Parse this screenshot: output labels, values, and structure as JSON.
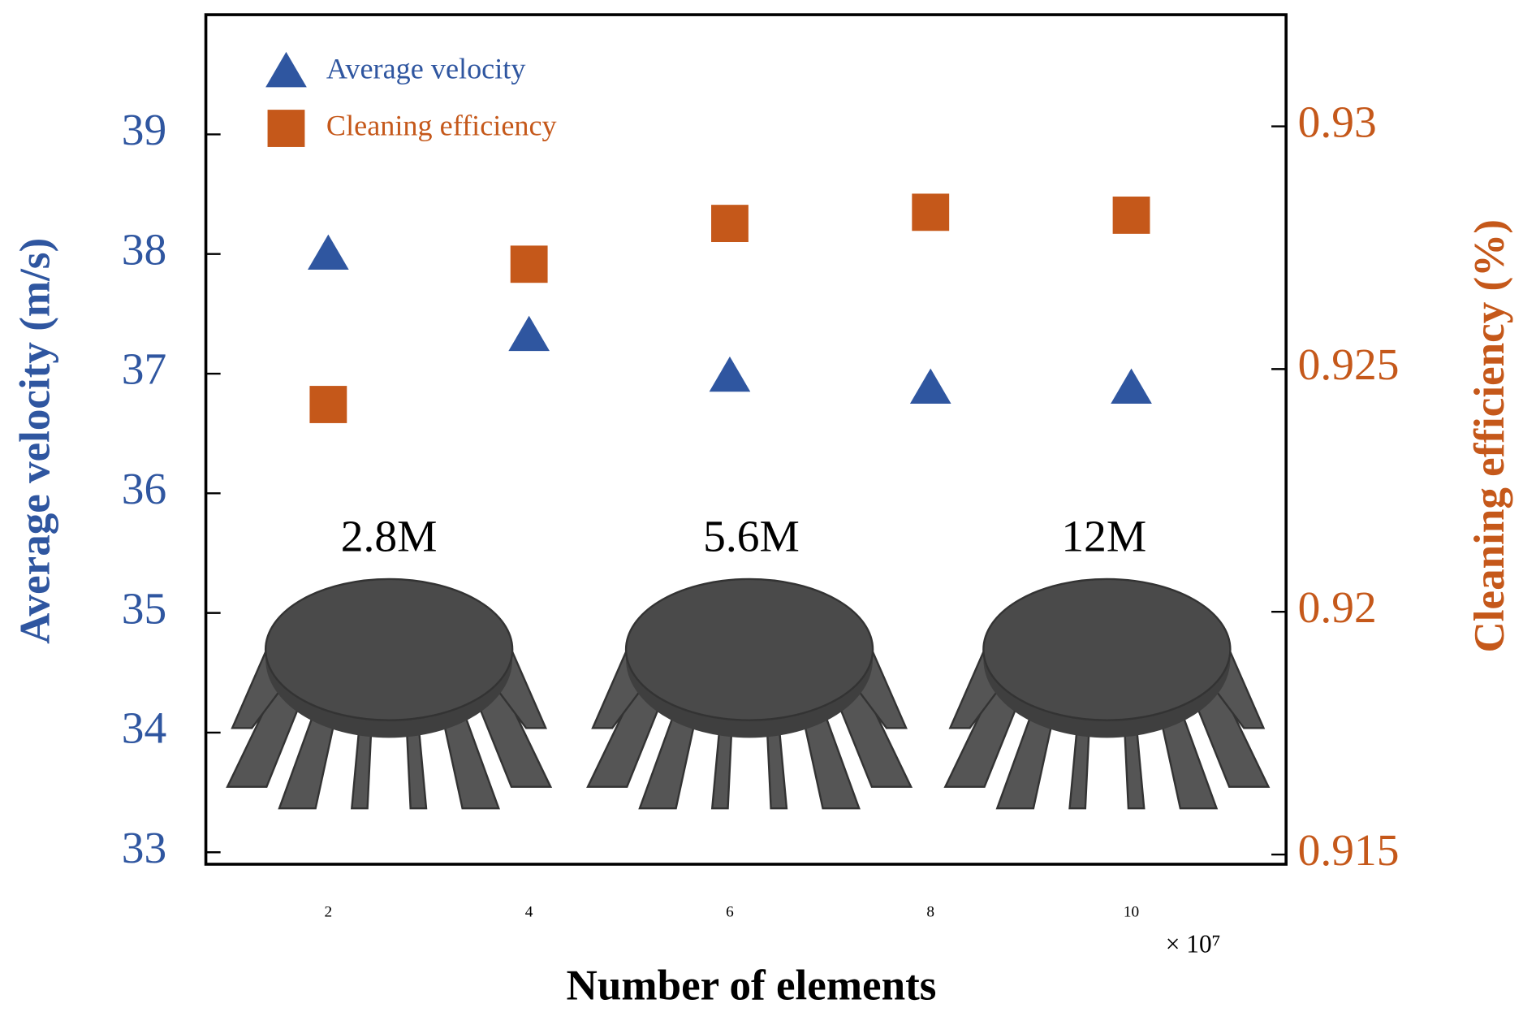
{
  "chart_data": {
    "type": "scatter",
    "x_label": "Number of elements",
    "x_multiplier": "× 10⁷",
    "y_label": "Average velocity (m/s)",
    "y2_label": "Cleaning efficiency (%)",
    "categories": [
      "2",
      "4",
      "6",
      "8",
      "10"
    ],
    "ylim": [
      32.9,
      40.0
    ],
    "yticks": [
      33,
      34,
      35,
      36,
      37,
      38,
      39
    ],
    "y2lim": [
      0.9148,
      0.9323
    ],
    "y2ticks": [
      0.915,
      0.92,
      0.925,
      0.93
    ],
    "legend": "upper left",
    "series": [
      {
        "name": "Average velocity",
        "color": "#2f56a0",
        "marker": "triangle",
        "values": [
          38.0,
          37.32,
          36.98,
          36.88,
          36.88
        ]
      },
      {
        "name": "Cleaning efficiency",
        "color": "#c5581a",
        "marker": "square",
        "axis": "y2",
        "values": [
          0.92427,
          0.92716,
          0.928,
          0.92823,
          0.92817
        ]
      }
    ],
    "annotations": [
      "2.8M",
      "5.6M",
      "12M"
    ]
  }
}
